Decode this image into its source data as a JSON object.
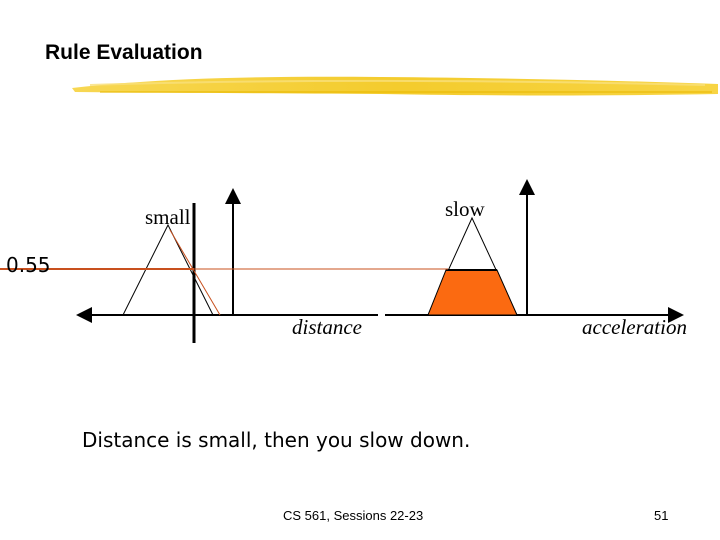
{
  "slide": {
    "title": "Rule Evaluation",
    "caption": "Distance is small, then you slow down.",
    "footer_course": "CS 561,  Sessions 22-23",
    "page_number": "51"
  },
  "diagram": {
    "membership_label_small": "small",
    "membership_label_slow": "slow",
    "level_label": "0.55",
    "level_value": 0.55,
    "axis_label_distance": "distance",
    "axis_label_acceleration": "acceleration"
  },
  "colors": {
    "highlight_brush": "#f5cc2a",
    "level_line": "#c8501e",
    "clipped_area": "#fb6a11"
  }
}
